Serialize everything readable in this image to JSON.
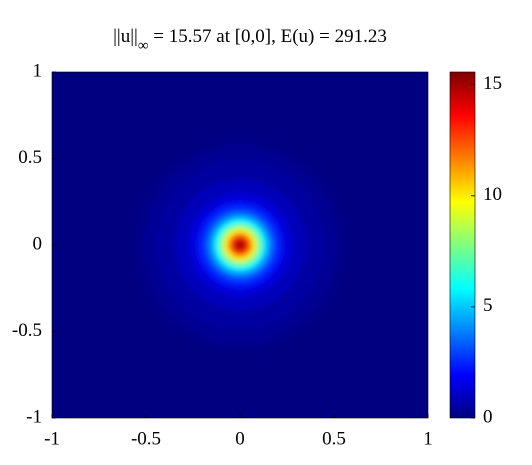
{
  "chart_data": {
    "type": "heatmap",
    "title_main": "||u||",
    "title_sub": "∞",
    "title_rest": " = 15.57 at [0,0], E(u) = 291.23",
    "radius": [
      0,
      0.025,
      0.05,
      0.075,
      0.1,
      0.125,
      0.15,
      0.175,
      0.2,
      0.25,
      0.3,
      0.4,
      0.5,
      0.55,
      0.6
    ],
    "values": [
      15.57,
      14.5,
      12.5,
      10,
      7.8,
      5.8,
      4.3,
      3.2,
      2.4,
      1.4,
      0.9,
      0.5,
      0.3,
      0.1,
      0
    ],
    "xlim": [
      -1,
      1
    ],
    "ylim": [
      -1,
      1
    ],
    "xticks": [
      -1,
      -0.5,
      0,
      0.5,
      1
    ],
    "yticks": [
      -1,
      -0.5,
      0,
      0.5,
      1
    ],
    "clim": [
      0,
      15.57
    ],
    "cticks": [
      0,
      5,
      10,
      15
    ],
    "colormap": "jet"
  }
}
